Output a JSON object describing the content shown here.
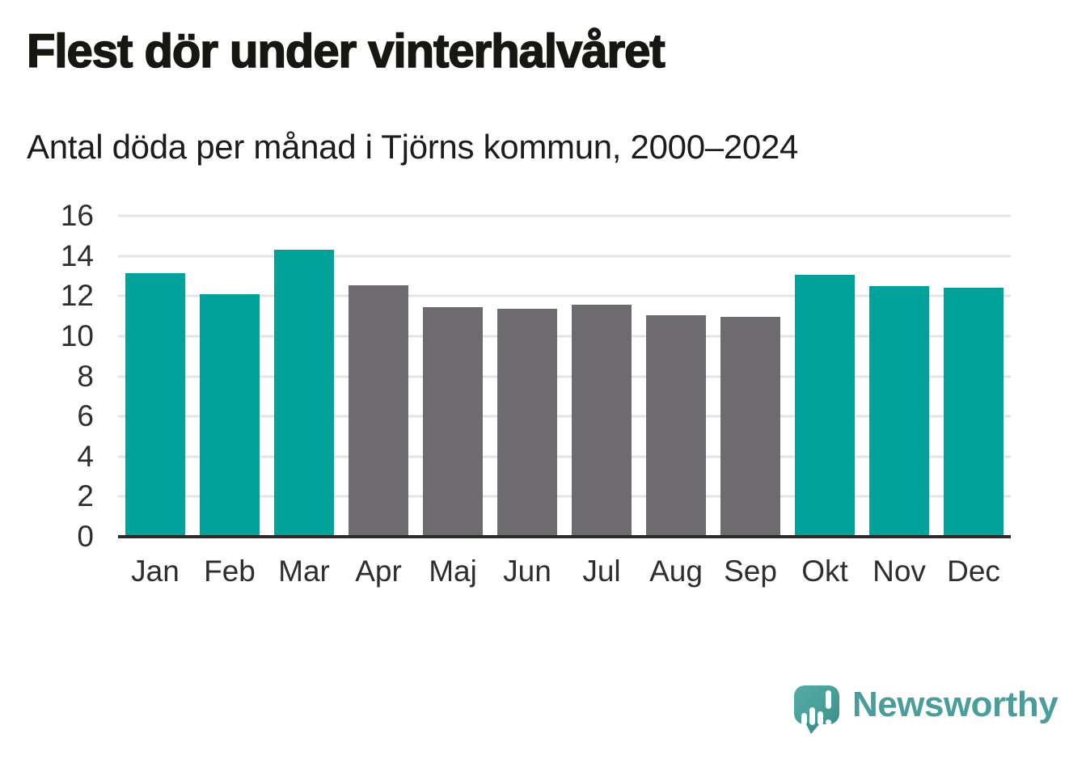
{
  "header": {
    "title": "Flest dör under vinterhalvåret",
    "subtitle": "Antal döda per månad i Tjörns kommun, 2000–2024"
  },
  "chart_data": {
    "type": "bar",
    "title": "Flest dör under vinterhalvåret",
    "subtitle": "Antal döda per månad i Tjörns kommun, 2000–2024",
    "categories": [
      "Jan",
      "Feb",
      "Mar",
      "Apr",
      "Maj",
      "Jun",
      "Jul",
      "Aug",
      "Sep",
      "Okt",
      "Nov",
      "Dec"
    ],
    "values": [
      13.15,
      12.1,
      14.3,
      12.55,
      11.45,
      11.35,
      11.55,
      11.05,
      10.95,
      13.05,
      12.5,
      12.4
    ],
    "groups": [
      "winter",
      "winter",
      "winter",
      "summer",
      "summer",
      "summer",
      "summer",
      "summer",
      "summer",
      "winter",
      "winter",
      "winter"
    ],
    "xlabel": "",
    "ylabel": "",
    "ylim": [
      0,
      16
    ],
    "yticks": [
      0,
      2,
      4,
      6,
      8,
      10,
      12,
      14,
      16
    ],
    "grid": "horizontal",
    "legend": "none",
    "colors": {
      "winter_bar": "#00a29a",
      "summer_bar": "#6d6a70",
      "gridline": "#e4e4e4",
      "axis_line": "#2b2b2b",
      "text": "#2e2e2e"
    }
  },
  "branding": {
    "wordmark": "Newsworthy",
    "logo_icon": "newsworthy-speech-bubble-bar-chart-icon",
    "brand_color": "#4a9d9a"
  }
}
